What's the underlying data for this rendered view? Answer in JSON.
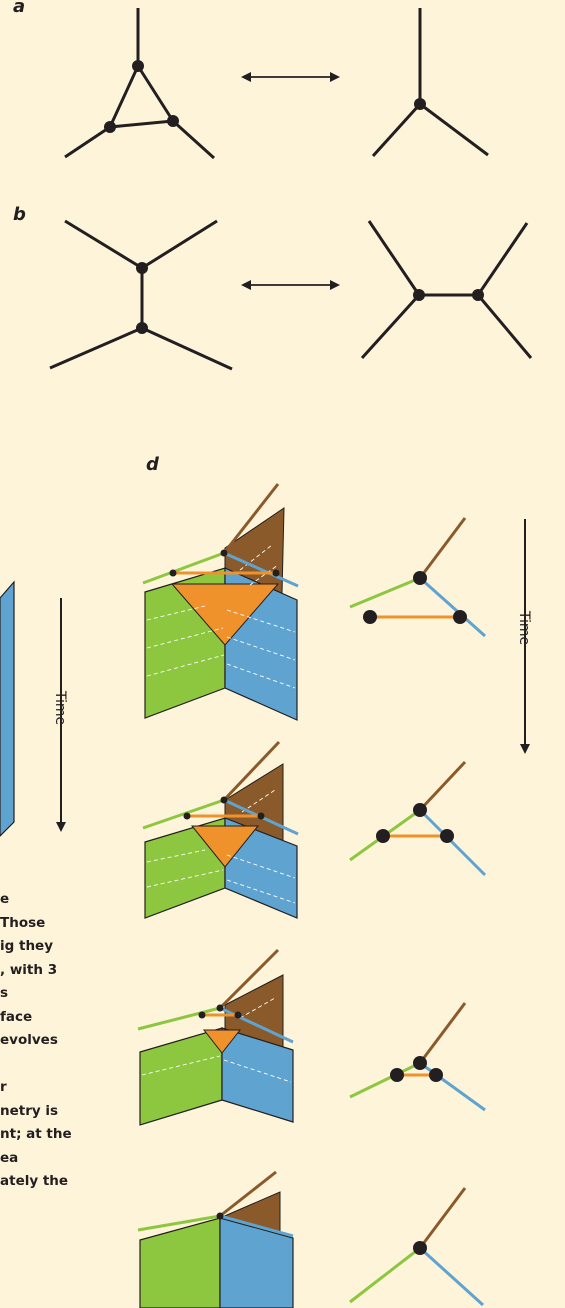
{
  "labels": {
    "panel_a": "a",
    "panel_b": "b",
    "panel_d": "d",
    "time_c": "Time",
    "time_d": "Time"
  },
  "caption_lines": [
    "e",
    "Those",
    "ig they",
    ", with 3",
    "s",
    "face",
    "evolves",
    "",
    "r",
    "netry is",
    "nt; at the",
    "ea",
    "ately the"
  ],
  "colors": {
    "background": "#fdf4d9",
    "line": "#231f20",
    "green": "#8dc63f",
    "blue": "#5fa3d0",
    "brown": "#8b5a2b",
    "orange": "#f0922b"
  }
}
